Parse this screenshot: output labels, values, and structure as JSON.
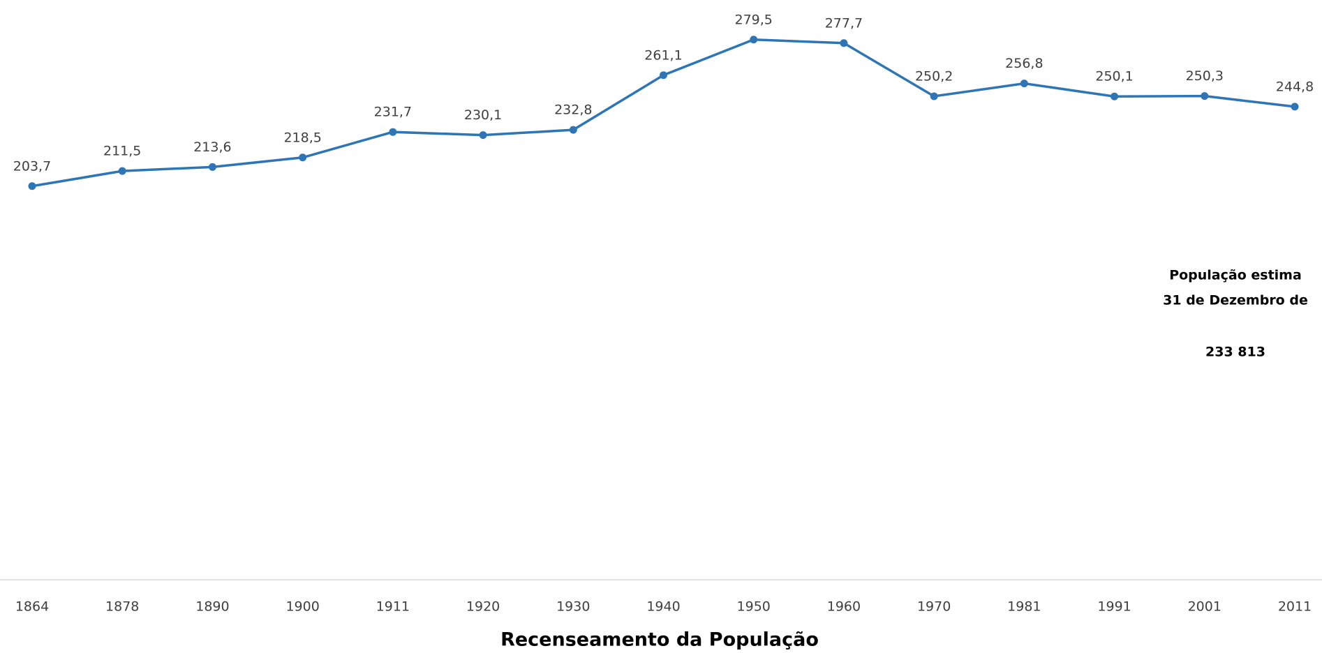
{
  "chart_data": {
    "type": "line",
    "categories": [
      "1864",
      "1878",
      "1890",
      "1900",
      "1911",
      "1920",
      "1930",
      "1940",
      "1950",
      "1960",
      "1970",
      "1981",
      "1991",
      "2001",
      "2011"
    ],
    "series": [
      {
        "color": "#2e75b6",
        "values": [
          203.7,
          211.5,
          213.6,
          218.5,
          231.7,
          230.1,
          232.8,
          261.1,
          279.5,
          277.7,
          250.2,
          256.8,
          250.1,
          250.3,
          244.8
        ],
        "value_labels": [
          "203,7",
          "211,5",
          "213,6",
          "218,5",
          "231,7",
          "230,1",
          "232,8",
          "261,1",
          "279,5",
          "277,7",
          "250,2",
          "256,8",
          "250,1",
          "250,3",
          "244,8"
        ]
      }
    ],
    "ylim": [
      0,
      300
    ],
    "x_label": "Recenseamento da População",
    "annotations": [
      "População estima",
      "31 de Dezembro de",
      "233 813"
    ]
  }
}
